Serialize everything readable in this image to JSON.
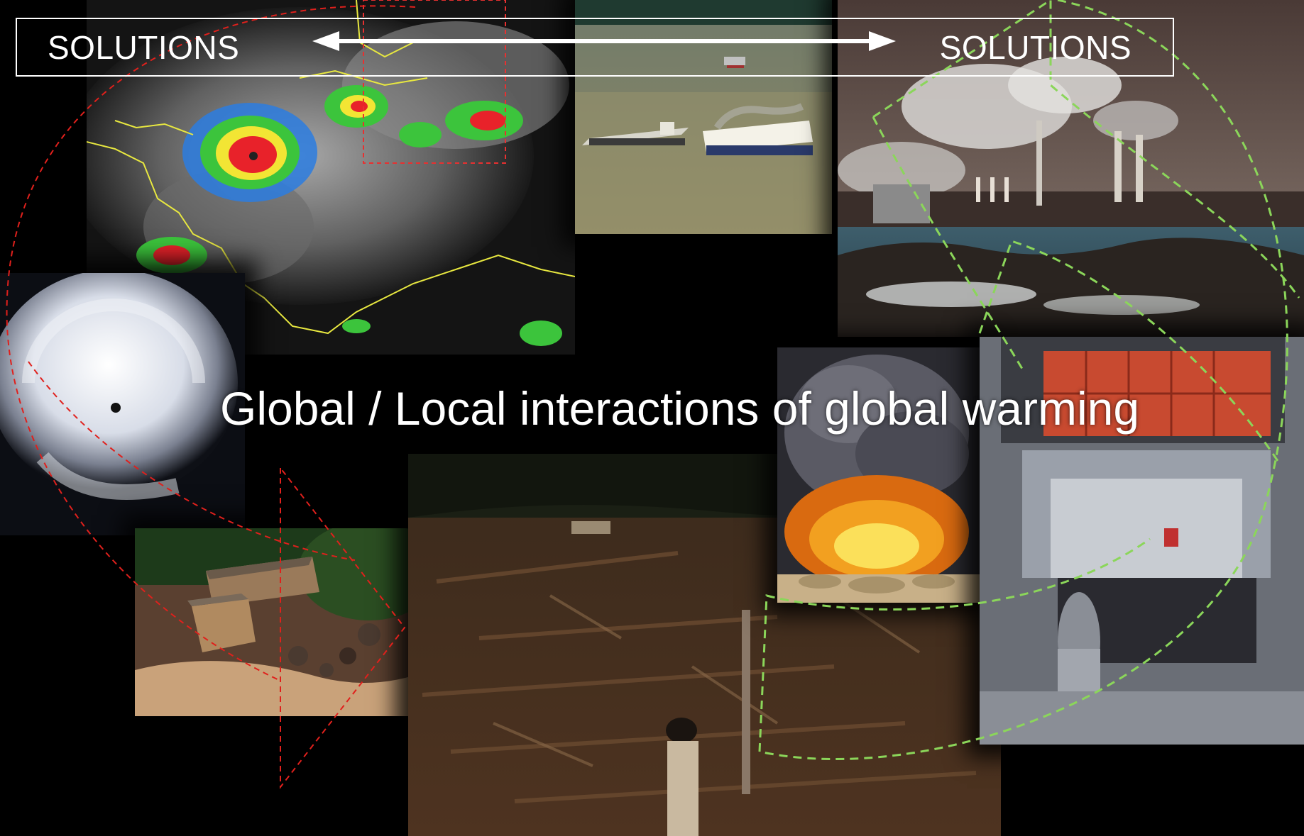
{
  "slide": {
    "title": "Global / Local interactions of global warming",
    "solutions_left": "SOLUTIONS",
    "solutions_right": "SOLUTIONS"
  },
  "colors": {
    "background": "#000000",
    "text": "#ffffff",
    "red_dashed": "#e0201c",
    "green_dashed": "#8bd65a"
  },
  "photos": [
    {
      "name": "satellite-storm-map"
    },
    {
      "name": "cargo-ships"
    },
    {
      "name": "factory-smokestacks"
    },
    {
      "name": "hurricane-eye"
    },
    {
      "name": "mudslide-houses"
    },
    {
      "name": "deforestation"
    },
    {
      "name": "oil-fire"
    },
    {
      "name": "truck-exhaust"
    }
  ]
}
